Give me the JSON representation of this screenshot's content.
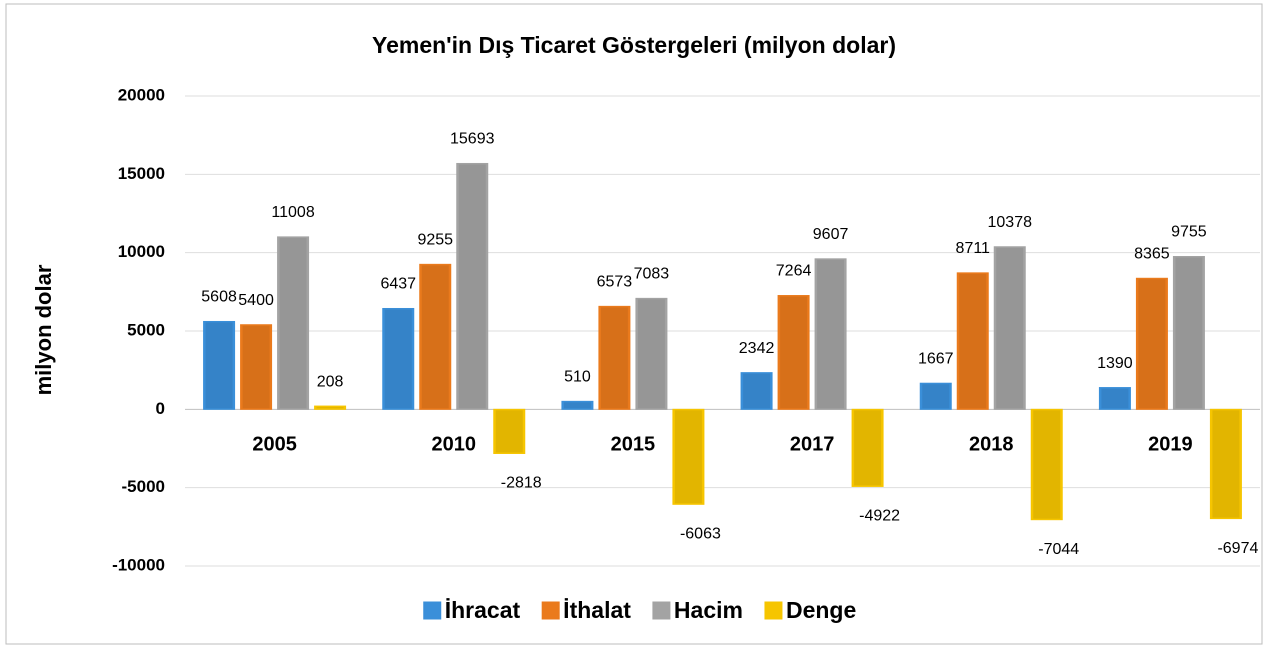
{
  "chart_data": {
    "type": "bar",
    "title": "Yemen'in Dış Ticaret Göstergeleri (milyon dolar)",
    "y_label": "milyon dolar",
    "categories": [
      "2005",
      "2010",
      "2015",
      "2017",
      "2018",
      "2019"
    ],
    "series": [
      {
        "name": "İhracat",
        "color": "#3a8fd9",
        "values": [
          5608,
          6437,
          510,
          2342,
          1667,
          1390
        ]
      },
      {
        "name": "İthalat",
        "color": "#ea7a1c",
        "values": [
          5400,
          9255,
          6573,
          7264,
          8711,
          8365
        ]
      },
      {
        "name": "Hacim",
        "color": "#a3a3a3",
        "values": [
          11008,
          15693,
          7083,
          9607,
          10378,
          9755
        ]
      },
      {
        "name": "Denge",
        "color": "#f6c500",
        "values": [
          208,
          -2818,
          -6063,
          -4922,
          -7044,
          -6974
        ]
      }
    ],
    "ylim": [
      -10000,
      20000
    ],
    "yticks": [
      -10000,
      -5000,
      0,
      5000,
      10000,
      15000,
      20000
    ],
    "grid": true,
    "legend": "bottom"
  }
}
